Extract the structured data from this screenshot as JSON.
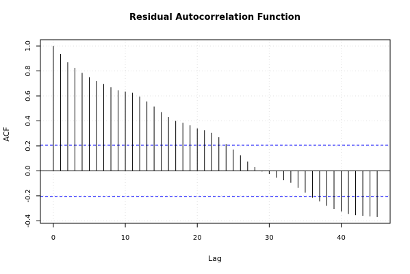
{
  "chart_data": {
    "type": "bar",
    "title": "Residual Autocorrelation Function",
    "xlabel": "Lag",
    "ylabel": "ACF",
    "xlim": [
      -1.8,
      46.8
    ],
    "ylim": [
      -0.42,
      1.05
    ],
    "x_ticks": [
      0,
      10,
      20,
      30,
      40
    ],
    "y_ticks": [
      -0.4,
      -0.2,
      0.0,
      0.2,
      0.4,
      0.6,
      0.8,
      1.0
    ],
    "grid": true,
    "confidence_bounds": [
      0.205,
      -0.205
    ],
    "colors": {
      "bars": "#000000",
      "confidence": "#0000ff",
      "grid": "#e0e0e0",
      "zero_line": "#000000"
    },
    "lags": [
      0,
      1,
      2,
      3,
      4,
      5,
      6,
      7,
      8,
      9,
      10,
      11,
      12,
      13,
      14,
      15,
      16,
      17,
      18,
      19,
      20,
      21,
      22,
      23,
      24,
      25,
      26,
      27,
      28,
      29,
      30,
      31,
      32,
      33,
      34,
      35,
      36,
      37,
      38,
      39,
      40,
      41,
      42,
      43,
      44,
      45
    ],
    "values": [
      1.0,
      0.935,
      0.87,
      0.825,
      0.785,
      0.75,
      0.72,
      0.695,
      0.67,
      0.645,
      0.635,
      0.625,
      0.595,
      0.555,
      0.515,
      0.47,
      0.43,
      0.4,
      0.385,
      0.365,
      0.34,
      0.325,
      0.305,
      0.27,
      0.215,
      0.17,
      0.125,
      0.075,
      0.03,
      -0.005,
      -0.025,
      -0.055,
      -0.075,
      -0.095,
      -0.135,
      -0.175,
      -0.215,
      -0.245,
      -0.28,
      -0.305,
      -0.325,
      -0.345,
      -0.355,
      -0.36,
      -0.365,
      -0.37
    ]
  }
}
